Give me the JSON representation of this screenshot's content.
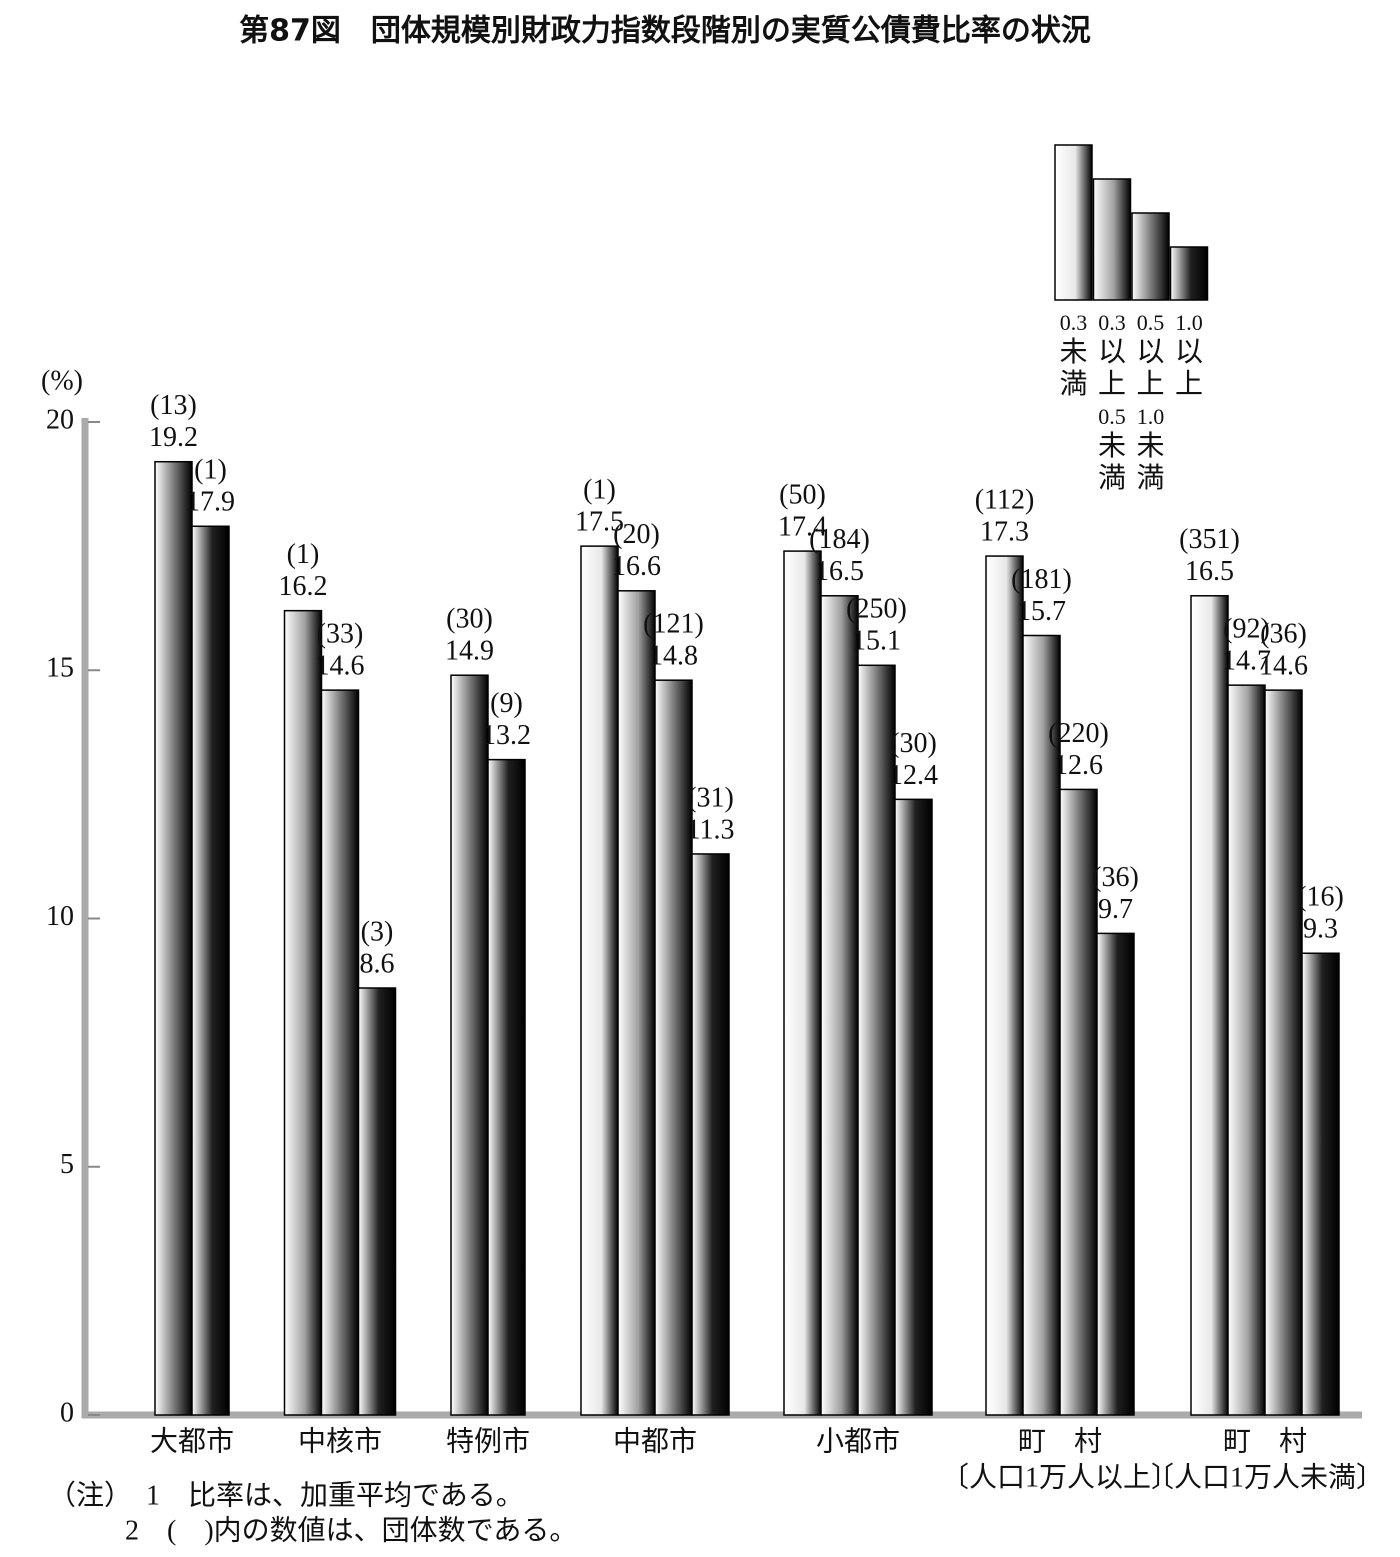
{
  "chart_data": {
    "type": "bar",
    "title": "第87図　団体規模別財政力指数段階別の実質公債費比率の状況",
    "y_label": "(%)",
    "categories": [
      "大都市",
      "中核市",
      "特例市",
      "中都市",
      "小都市",
      "町　村",
      "町　村"
    ],
    "category_notes": [
      null,
      null,
      null,
      null,
      null,
      "〔人口1万人以上〕",
      "〔人口1万人未満〕"
    ],
    "series": [
      {
        "name": "0.3未満",
        "color": "#e8e8e8",
        "values": [
          null,
          null,
          null,
          17.5,
          17.4,
          17.3,
          16.5
        ],
        "count_labels": [
          null,
          null,
          null,
          "(1)",
          "(50)",
          "(112)",
          "(351)"
        ]
      },
      {
        "name": "0.3以上0.5未満",
        "color": "#a0a0a0",
        "values": [
          null,
          16.2,
          null,
          16.6,
          16.5,
          15.7,
          14.7
        ],
        "count_labels": [
          null,
          "(1)",
          null,
          "(20)",
          "(184)",
          "(181)",
          "(92)"
        ]
      },
      {
        "name": "0.5以上1.0未満",
        "color": "#707070",
        "values": [
          19.2,
          14.6,
          14.9,
          14.8,
          15.1,
          12.6,
          14.6
        ],
        "count_labels": [
          "(13)",
          "(33)",
          "(30)",
          "(121)",
          "(250)",
          "(220)",
          "(36)"
        ]
      },
      {
        "name": "1.0以上",
        "color": "#202020",
        "values": [
          17.9,
          8.6,
          13.2,
          11.3,
          12.4,
          9.7,
          9.3
        ],
        "count_labels": [
          "(1)",
          "(3)",
          "(9)",
          "(31)",
          "(30)",
          "(36)",
          "(16)"
        ]
      }
    ],
    "ylim": [
      0,
      20
    ],
    "yticks": [
      0,
      5,
      10,
      15,
      20
    ],
    "grid": false,
    "legend": "top-right",
    "notes": [
      "（注）　1　比率は、加重平均である。",
      "2　(　)内の数値は、団体数である。"
    ]
  }
}
